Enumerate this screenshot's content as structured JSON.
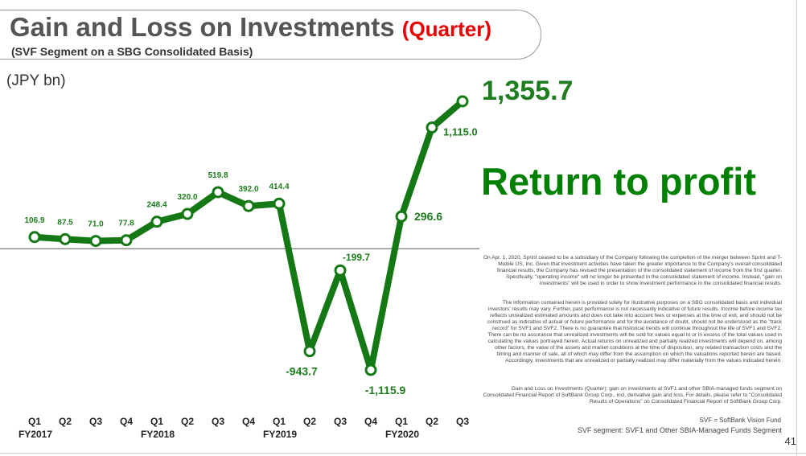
{
  "title": {
    "main": "Gain and Loss on Investments",
    "highlight": "(Quarter)"
  },
  "subtitle": "(SVF Segment on a SBG Consolidated Basis)",
  "unit": "(JPY bn)",
  "headline": "Return to profit",
  "chart_data": {
    "type": "line",
    "categories": [
      "Q1",
      "Q2",
      "Q3",
      "Q4",
      "Q1",
      "Q2",
      "Q3",
      "Q4",
      "Q1",
      "Q2",
      "Q3",
      "Q4",
      "Q1",
      "Q2",
      "Q3"
    ],
    "fiscal_years": [
      {
        "label": "FY2017",
        "start": 0
      },
      {
        "label": "FY2018",
        "start": 4
      },
      {
        "label": "FY2019",
        "start": 8
      },
      {
        "label": "FY2020",
        "start": 12
      }
    ],
    "values": [
      106.9,
      87.5,
      71.0,
      77.8,
      248.4,
      320.0,
      519.8,
      392.0,
      414.4,
      -943.7,
      -199.7,
      -1115.9,
      296.6,
      1115.0,
      1355.7
    ],
    "labels": [
      "106.9",
      "87.5",
      "71.0",
      "77.8",
      "248.4",
      "320.0",
      "519.8",
      "392.0",
      "414.4",
      "-943.7",
      "-199.7",
      "-1,115.9",
      "296.6",
      "1,115.0",
      "1,355.7"
    ],
    "ylim": [
      -1115.9,
      1355.7
    ],
    "line_color": "#147814",
    "zero_line": true
  },
  "notes": {
    "note1": "On Apr. 1, 2020, Sprint ceased to be a subsidiary of the Company following the completion of the merger between Sprint and T-Mobile US, Inc. Given that investment activities have taken the greater importance to the Company's overall consolidated financial results, the Company has revised the presentation of the consolidated statement of income from the first quarter. Specifically, \"operating income\" will no longer be presented in the consolidated statement of income. Instead, \"gain on investments\" will be used in order to show investment performance in the consolidated financial results.",
    "note2": "The information contained herein is provided solely for illustrative purposes on a SBG consolidated basis and individual investors' results may vary. Further, past performance is not necessarily indicative of future results. Income before income tax reflects unrealized estimated amounts and does not take into account fees or expenses at the time of exit, and should not be construed as indicative of actual or future performance and for the avoidance of doubt, should not be understood as the \"track record\" for SVF1 and SVF2. There is no guarantee that historical trends will continue throughout the life of SVF1 and SVF2. There can be no assurance that unrealized investments will be sold for values equal to or in excess of the total values used in calculating the values portrayed herein. Actual returns on unrealized and partially realized investments will depend on, among other factors, the value of the assets and market conditions at the time of disposition, any related transaction costs and the timing and manner of sale, all of which may differ from the assumption on which the valuations reported herein are based. Accordingly, investments that are unrealized or partially realized may differ materially from the values indicated herein.",
    "note3": "Gain and Loss on Investments (Quarter): gain on investments at SVF1 and other SBIA-managed funds segment on Consolidated Financial Report of SoftBank Group Corp., incl. derivative gain and loss. For details, please refer to \"Consolidated Results of Operations\" on Consolidated Financial Report of SoftBank Group Corp.",
    "svf_definition": "SVF = SoftBank Vision Fund",
    "svf_segment": "SVF segment: SVF1 and Other SBIA-Managed Funds Segment"
  },
  "page_number": "41"
}
